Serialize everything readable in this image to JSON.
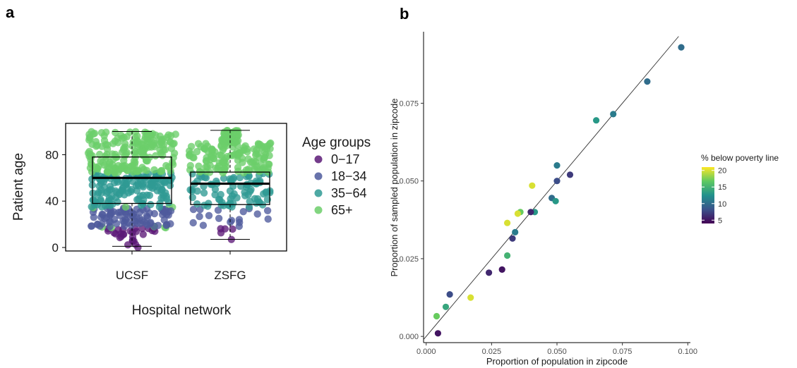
{
  "chart_data": [
    {
      "panel_label": "a",
      "type": "box",
      "xlabel": "Hospital network",
      "ylabel": "Patient age",
      "categories": [
        "UCSF",
        "ZSFG"
      ],
      "ylim": [
        -3,
        107
      ],
      "yticks": [
        0,
        40,
        80
      ],
      "grid": false,
      "box_stats": [
        {
          "category": "UCSF",
          "min": 1,
          "q1": 38,
          "median": 60,
          "q3": 78,
          "max": 100
        },
        {
          "category": "ZSFG",
          "min": 7,
          "q1": 37,
          "median": 55,
          "q3": 65,
          "max": 101
        }
      ],
      "points_overlay": "beeswarm of individual patient ages colored by age group",
      "legend": {
        "title": "Age groups",
        "position": "right",
        "entries": [
          {
            "label": "0−17",
            "color": "#5c1a77",
            "range": [
              0,
              17
            ]
          },
          {
            "label": "18−34",
            "color": "#4e5a9c",
            "range": [
              18,
              34
            ]
          },
          {
            "label": "35−64",
            "color": "#2f9a94",
            "range": [
              35,
              64
            ]
          },
          {
            "label": "65+",
            "color": "#6cce6a",
            "range": [
              65,
              100
            ]
          }
        ]
      }
    },
    {
      "panel_label": "b",
      "type": "scatter",
      "xlabel": "Proportion of population in zipcode",
      "ylabel": "Proportion of sampled population in zipcode",
      "xlim": [
        -0.001,
        0.101
      ],
      "ylim": [
        -0.002,
        0.098
      ],
      "xticks": [
        "0.000",
        "0.025",
        "0.050",
        "0.075",
        "0.100"
      ],
      "yticks": [
        "0.000",
        "0.025",
        "0.050",
        "0.075"
      ],
      "grid": false,
      "reference_line": "y = x",
      "color_legend": {
        "title": "% below poverty line",
        "position": "right",
        "ticks": [
          "20",
          "15",
          "10",
          "5"
        ],
        "range": [
          4,
          21
        ]
      },
      "points": [
        {
          "x": 0.0975,
          "y": 0.093,
          "pov": 10
        },
        {
          "x": 0.0845,
          "y": 0.082,
          "pov": 10
        },
        {
          "x": 0.0715,
          "y": 0.0715,
          "pov": 11
        },
        {
          "x": 0.065,
          "y": 0.0695,
          "pov": 13
        },
        {
          "x": 0.05,
          "y": 0.055,
          "pov": 11
        },
        {
          "x": 0.055,
          "y": 0.052,
          "pov": 7
        },
        {
          "x": 0.05,
          "y": 0.05,
          "pov": 8
        },
        {
          "x": 0.0405,
          "y": 0.0485,
          "pov": 20
        },
        {
          "x": 0.048,
          "y": 0.0445,
          "pov": 10
        },
        {
          "x": 0.0495,
          "y": 0.0435,
          "pov": 13
        },
        {
          "x": 0.0415,
          "y": 0.04,
          "pov": 13
        },
        {
          "x": 0.04,
          "y": 0.04,
          "pov": 6
        },
        {
          "x": 0.036,
          "y": 0.04,
          "pov": 17
        },
        {
          "x": 0.035,
          "y": 0.0395,
          "pov": 20
        },
        {
          "x": 0.031,
          "y": 0.0365,
          "pov": 20
        },
        {
          "x": 0.034,
          "y": 0.0335,
          "pov": 11
        },
        {
          "x": 0.033,
          "y": 0.0315,
          "pov": 7
        },
        {
          "x": 0.031,
          "y": 0.026,
          "pov": 15
        },
        {
          "x": 0.029,
          "y": 0.0215,
          "pov": 5
        },
        {
          "x": 0.024,
          "y": 0.0205,
          "pov": 6
        },
        {
          "x": 0.009,
          "y": 0.0135,
          "pov": 8
        },
        {
          "x": 0.017,
          "y": 0.0125,
          "pov": 20
        },
        {
          "x": 0.0075,
          "y": 0.0095,
          "pov": 14
        },
        {
          "x": 0.004,
          "y": 0.0065,
          "pov": 17
        },
        {
          "x": 0.0045,
          "y": 0.001,
          "pov": 5
        }
      ]
    }
  ]
}
